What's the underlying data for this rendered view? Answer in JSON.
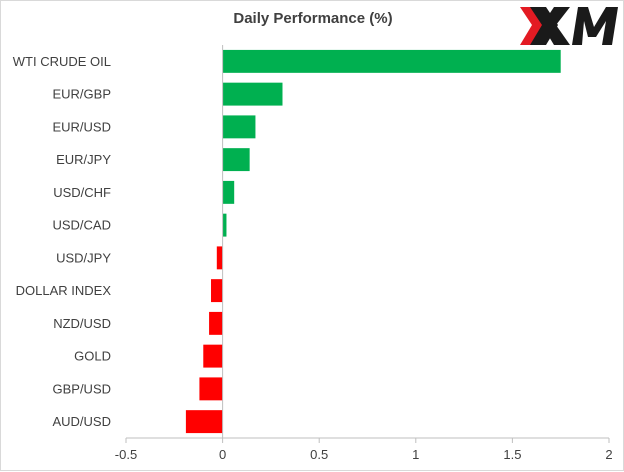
{
  "chart_data": {
    "type": "bar",
    "orientation": "horizontal",
    "title": "Daily Performance (%)",
    "xlabel": "",
    "ylabel": "",
    "categories": [
      "WTI CRUDE OIL",
      "EUR/GBP",
      "EUR/USD",
      "EUR/JPY",
      "USD/CHF",
      "USD/CAD",
      "USD/JPY",
      "DOLLAR INDEX",
      "NZD/USD",
      "GOLD",
      "GBP/USD",
      "AUD/USD"
    ],
    "values": [
      1.75,
      0.31,
      0.17,
      0.14,
      0.06,
      0.02,
      -0.03,
      -0.06,
      -0.07,
      -0.1,
      -0.12,
      -0.19
    ],
    "xlim": [
      -0.5,
      2
    ],
    "xticks": [
      -0.5,
      0,
      0.5,
      1,
      1.5,
      2
    ],
    "xtick_labels": [
      "-0.5",
      "0",
      "0.5",
      "1",
      "1.5",
      "2"
    ],
    "grid": false,
    "legend": "none",
    "colors": {
      "positive": "#00b050",
      "negative": "#ff0000",
      "axis": "#bfbfbf",
      "text": "#404040"
    }
  },
  "logo": {
    "text": "XM",
    "colors": {
      "x_accent": "#e31b23",
      "x_body": "#1a1a1a",
      "letters": "#1a1a1a"
    }
  }
}
